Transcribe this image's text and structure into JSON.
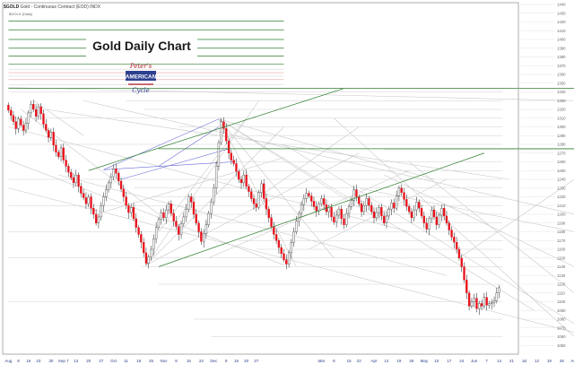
{
  "header": {
    "symbol": "$GOLD",
    "description": "Gold - Continuous Contract (EOD)",
    "exchange": "INDX",
    "sub": "$GOLD (Daily)"
  },
  "logo": {
    "top_text": "Peter's",
    "main_text": "AMERICAN",
    "bottom_text": "Cycle"
  },
  "colors": {
    "up": "#ffffff",
    "down": "#e8101a",
    "channel": "#2e7d2e",
    "fan": "#c8c8c8",
    "fib": "#6b6bd6",
    "grid": "#e4e4e4"
  },
  "chart_data": {
    "type": "candlestick",
    "title": "Gold Daily Chart",
    "ylim": [
      1040,
      1440
    ],
    "y_ticks": [
      1050,
      1060,
      1070,
      1080,
      1090,
      1100,
      1110,
      1120,
      1130,
      1140,
      1150,
      1160,
      1170,
      1180,
      1190,
      1200,
      1210,
      1220,
      1230,
      1240,
      1250,
      1260,
      1270,
      1280,
      1290,
      1300,
      1310,
      1320,
      1330,
      1340,
      1350,
      1360,
      1370,
      1380,
      1390,
      1400,
      1410,
      1420,
      1430,
      1440
    ],
    "x_tick_labels": [
      "Aug",
      "8",
      "16",
      "23",
      "30",
      "Sep 7",
      "13",
      "20",
      "27",
      "Oct",
      "11",
      "18",
      "25",
      "Nov",
      "8",
      "15",
      "22",
      "Dec",
      "8",
      "15",
      "20",
      "27",
      "Mar",
      "8",
      "15",
      "22",
      "Apr",
      "12",
      "19",
      "26",
      "May",
      "10",
      "17",
      "24",
      "Jun",
      "7",
      "14",
      "21",
      "Jul",
      "12",
      "19",
      "26",
      "Aug"
    ],
    "x_tick_index": [
      0,
      4,
      8,
      12,
      17,
      22,
      27,
      32,
      37,
      42,
      47,
      52,
      57,
      62,
      67,
      72,
      77,
      82,
      87,
      91,
      95,
      99,
      125,
      130,
      136,
      140,
      146,
      151,
      156,
      161,
      166,
      171,
      176,
      181,
      186,
      191,
      196,
      201,
      206,
      211,
      216,
      221,
      226
    ],
    "close": [
      1319,
      1313,
      1306,
      1298,
      1309,
      1302,
      1296,
      1304,
      1316,
      1326,
      1320,
      1312,
      1323,
      1315,
      1303,
      1296,
      1288,
      1294,
      1279,
      1271,
      1266,
      1276,
      1262,
      1255,
      1248,
      1242,
      1236,
      1245,
      1232,
      1224,
      1219,
      1212,
      1220,
      1207,
      1200,
      1190,
      1197,
      1210,
      1220,
      1228,
      1236,
      1243,
      1252,
      1247,
      1238,
      1229,
      1220,
      1210,
      1202,
      1208,
      1195,
      1185,
      1177,
      1168,
      1156,
      1144,
      1151,
      1160,
      1172,
      1185,
      1194,
      1202,
      1196,
      1205,
      1212,
      1201,
      1192,
      1186,
      1177,
      1189,
      1197,
      1206,
      1220,
      1214,
      1200,
      1190,
      1180,
      1169,
      1178,
      1188,
      1201,
      1214,
      1230,
      1255,
      1282,
      1306,
      1298,
      1284,
      1270,
      1262,
      1258,
      1249,
      1240,
      1236,
      1245,
      1232,
      1226,
      1218,
      1212,
      1208,
      1225,
      1235,
      1218,
      1206,
      1196,
      1186,
      1177,
      1170,
      1162,
      1155,
      1148,
      1143,
      1156,
      1168,
      1180,
      1192,
      1201,
      1211,
      1218,
      1224,
      1221,
      1215,
      1209,
      1204,
      1212,
      1218,
      1211,
      1203,
      1208,
      1197,
      1191,
      1199,
      1206,
      1195,
      1188,
      1201,
      1209,
      1216,
      1228,
      1220,
      1212,
      1203,
      1210,
      1218,
      1210,
      1203,
      1196,
      1202,
      1208,
      1198,
      1190,
      1198,
      1206,
      1213,
      1207,
      1221,
      1230,
      1225,
      1217,
      1209,
      1203,
      1196,
      1205,
      1214,
      1207,
      1198,
      1190,
      1183,
      1195,
      1205,
      1197,
      1188,
      1199,
      1207,
      1198,
      1190,
      1182,
      1174,
      1168,
      1160,
      1150,
      1140,
      1125,
      1110,
      1095,
      1100,
      1104,
      1092,
      1098,
      1095,
      1105,
      1096,
      1098,
      1099,
      1101,
      1110,
      1116
    ]
  }
}
